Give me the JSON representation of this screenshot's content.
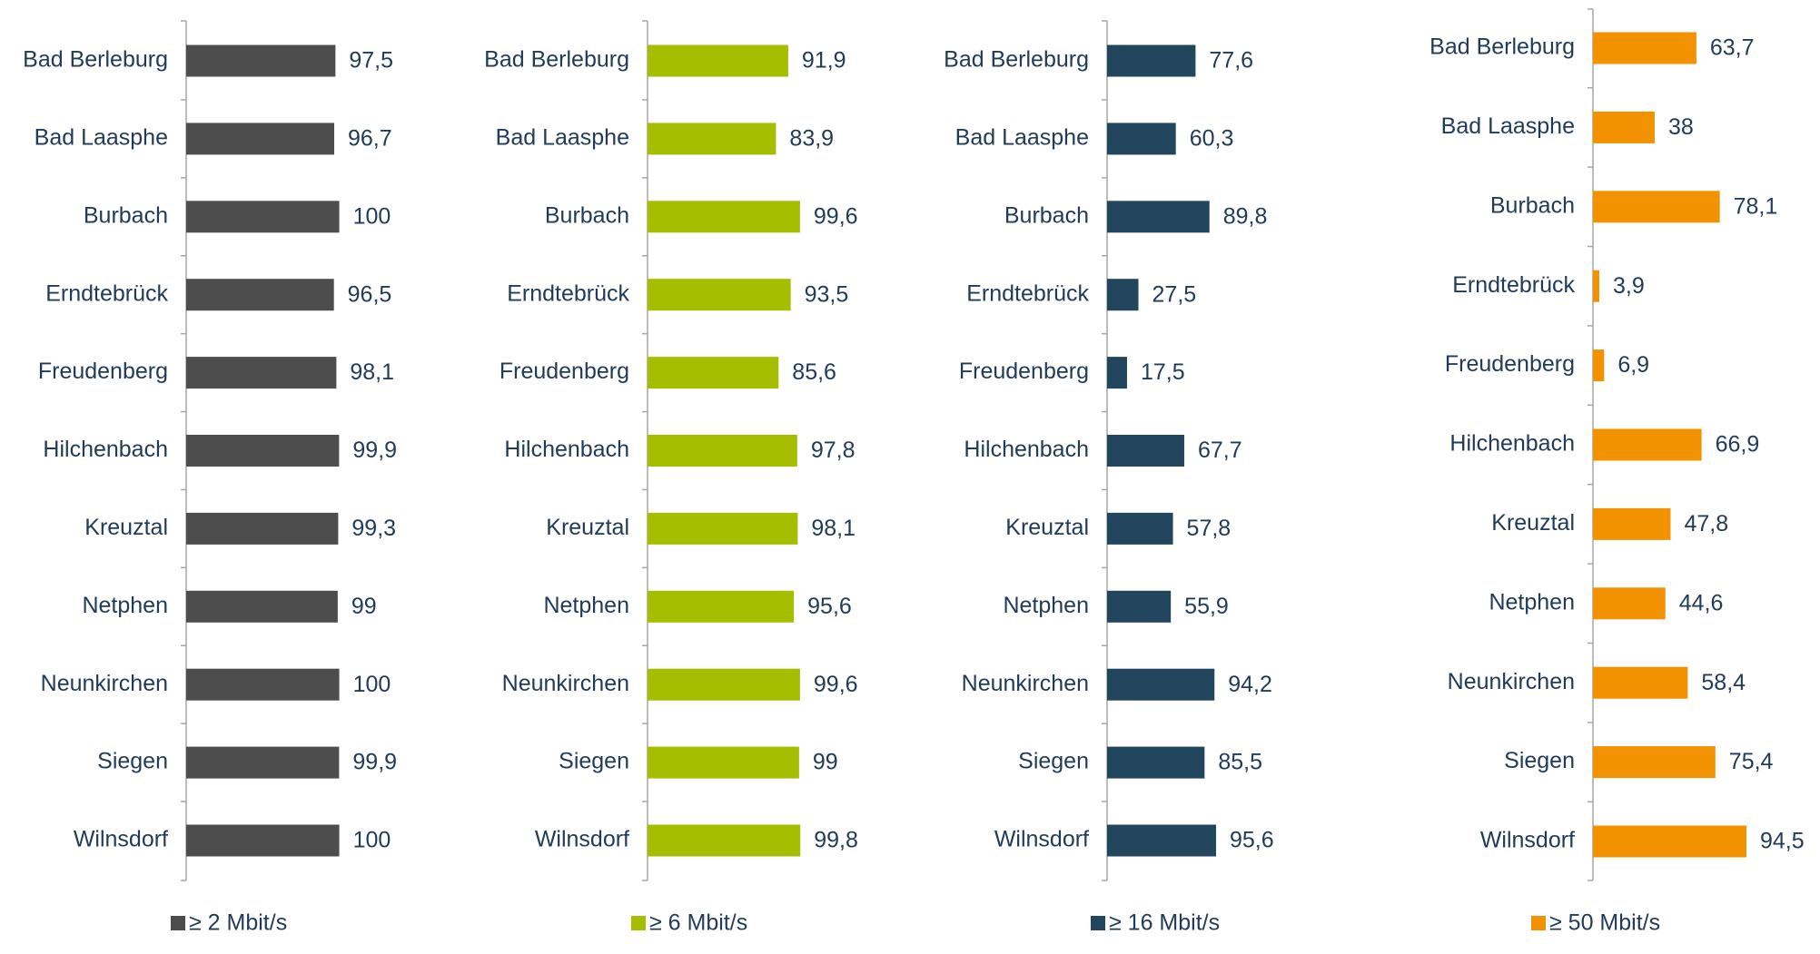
{
  "chart_data": [
    {
      "type": "bar",
      "categories": [
        "Bad Berleburg",
        "Bad Laasphe",
        "Burbach",
        "Erndtebrück",
        "Freudenberg",
        "Hilchenbach",
        "Kreuztal",
        "Netphen",
        "Neunkirchen",
        "Siegen",
        "Wilnsdorf"
      ],
      "series": [
        {
          "name": "≥ 2 Mbit/s",
          "color": "#4d4d4d",
          "values": [
            97.5,
            96.7,
            100,
            96.5,
            98.1,
            99.9,
            99.3,
            99,
            100,
            99.9,
            100
          ],
          "value_labels": [
            "97,5",
            "96,7",
            "100",
            "96,5",
            "98,1",
            "99,9",
            "99,3",
            "99",
            "100",
            "99,9",
            "100"
          ]
        }
      ],
      "xlim": [
        0,
        175
      ]
    },
    {
      "type": "bar",
      "categories": [
        "Bad Berleburg",
        "Bad Laasphe",
        "Burbach",
        "Erndtebrück",
        "Freudenberg",
        "Hilchenbach",
        "Kreuztal",
        "Netphen",
        "Neunkirchen",
        "Siegen",
        "Wilnsdorf"
      ],
      "series": [
        {
          "name": "≥ 6 Mbit/s",
          "color": "#a5bf00",
          "values": [
            91.9,
            83.9,
            99.6,
            93.5,
            85.6,
            97.8,
            98.1,
            95.6,
            99.6,
            99,
            99.8
          ],
          "value_labels": [
            "91,9",
            "83,9",
            "99,6",
            "93,5",
            "85,6",
            "97,8",
            "98,1",
            "95,6",
            "99,6",
            "99",
            "99,8"
          ]
        }
      ],
      "xlim": [
        0,
        175
      ]
    },
    {
      "type": "bar",
      "categories": [
        "Bad Berleburg",
        "Bad Laasphe",
        "Burbach",
        "Erndtebrück",
        "Freudenberg",
        "Hilchenbach",
        "Kreuztal",
        "Netphen",
        "Neunkirchen",
        "Siegen",
        "Wilnsdorf"
      ],
      "series": [
        {
          "name": "≥ 16 Mbit/s",
          "color": "#22465e",
          "values": [
            77.6,
            60.3,
            89.8,
            27.5,
            17.5,
            67.7,
            57.8,
            55.9,
            94.2,
            85.5,
            95.6
          ],
          "value_labels": [
            "77,6",
            "60,3",
            "89,8",
            "27,5",
            "17,5",
            "67,7",
            "57,8",
            "55,9",
            "94,2",
            "85,5",
            "95,6"
          ]
        }
      ],
      "xlim": [
        0,
        235
      ]
    },
    {
      "type": "bar",
      "categories": [
        "Bad Berleburg",
        "Bad Laasphe",
        "Burbach",
        "Erndtebrück",
        "Freudenberg",
        "Hilchenbach",
        "Kreuztal",
        "Netphen",
        "Neunkirchen",
        "Siegen",
        "Wilnsdorf"
      ],
      "series": [
        {
          "name": "≥ 50 Mbit/s",
          "color": "#f39200",
          "values": [
            63.7,
            38,
            78.1,
            3.9,
            6.9,
            66.9,
            47.8,
            44.6,
            58.4,
            75.4,
            94.5
          ],
          "value_labels": [
            "63,7",
            "38",
            "78,1",
            "3,9",
            "6,9",
            "66,9",
            "47,8",
            "44,6",
            "58,4",
            "75,4",
            "94,5"
          ]
        }
      ],
      "xlim": [
        0,
        165
      ]
    }
  ]
}
